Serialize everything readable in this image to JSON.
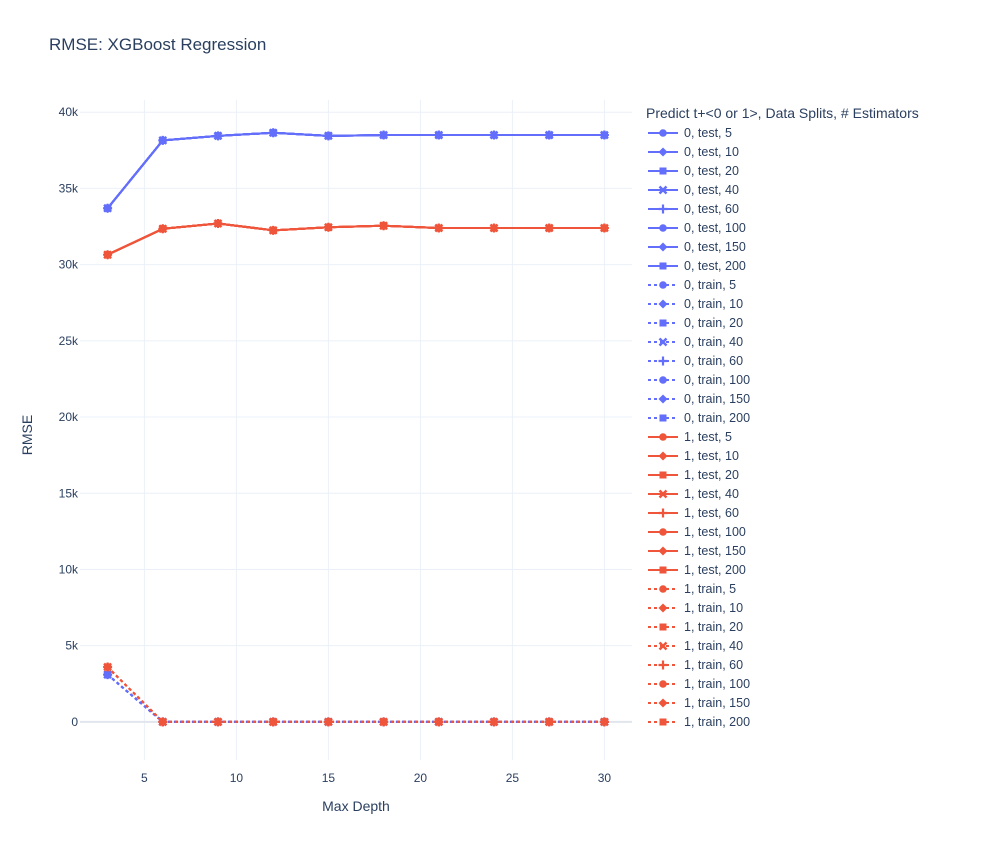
{
  "chart_data": {
    "type": "line",
    "title": "RMSE: XGBoost Regression",
    "xlabel": "Max Depth",
    "ylabel": "RMSE",
    "xlim": [
      1.5,
      31.5
    ],
    "ylim": [
      -2500,
      40800
    ],
    "grid": true,
    "x_ticks": [
      5,
      10,
      15,
      20,
      25,
      30
    ],
    "x_tick_labels": [
      "5",
      "10",
      "15",
      "20",
      "25",
      "30"
    ],
    "y_ticks": [
      0,
      5000,
      10000,
      15000,
      20000,
      25000,
      30000,
      35000,
      40000
    ],
    "y_tick_labels": [
      "0",
      "5k",
      "10k",
      "15k",
      "20k",
      "25k",
      "30k",
      "35k",
      "40k"
    ],
    "legend": {
      "title": "Predict t+<0 or 1>, Data Splits, # Estimators",
      "placement": "right"
    },
    "colors": {
      "0": "#636efa",
      "1": "#EF553B"
    },
    "x": [
      3,
      6,
      9,
      12,
      15,
      18,
      21,
      24,
      27,
      30
    ],
    "series": [
      {
        "name": "0, test, 5",
        "group": "0",
        "dash": "solid",
        "symbol": "circle",
        "values": [
          33700,
          38150,
          38450,
          38650,
          38450,
          38500,
          38500,
          38500,
          38500,
          38500
        ]
      },
      {
        "name": "0, test, 10",
        "group": "0",
        "dash": "solid",
        "symbol": "diamond",
        "values": [
          33700,
          38150,
          38450,
          38650,
          38450,
          38500,
          38500,
          38500,
          38500,
          38500
        ]
      },
      {
        "name": "0, test, 20",
        "group": "0",
        "dash": "solid",
        "symbol": "square",
        "values": [
          33700,
          38150,
          38450,
          38650,
          38450,
          38500,
          38500,
          38500,
          38500,
          38500
        ]
      },
      {
        "name": "0, test, 40",
        "group": "0",
        "dash": "solid",
        "symbol": "x",
        "values": [
          33700,
          38150,
          38450,
          38650,
          38450,
          38500,
          38500,
          38500,
          38500,
          38500
        ]
      },
      {
        "name": "0, test, 60",
        "group": "0",
        "dash": "solid",
        "symbol": "cross",
        "values": [
          33700,
          38150,
          38450,
          38650,
          38450,
          38500,
          38500,
          38500,
          38500,
          38500
        ]
      },
      {
        "name": "0, test, 100",
        "group": "0",
        "dash": "solid",
        "symbol": "circle",
        "values": [
          33700,
          38150,
          38450,
          38650,
          38450,
          38500,
          38500,
          38500,
          38500,
          38500
        ]
      },
      {
        "name": "0, test, 150",
        "group": "0",
        "dash": "solid",
        "symbol": "diamond",
        "values": [
          33700,
          38150,
          38450,
          38650,
          38450,
          38500,
          38500,
          38500,
          38500,
          38500
        ]
      },
      {
        "name": "0, test, 200",
        "group": "0",
        "dash": "solid",
        "symbol": "square",
        "values": [
          33700,
          38150,
          38450,
          38650,
          38450,
          38500,
          38500,
          38500,
          38500,
          38500
        ]
      },
      {
        "name": "0, train, 5",
        "group": "0",
        "dash": "dot",
        "symbol": "circle",
        "values": [
          3100,
          0,
          0,
          0,
          0,
          0,
          0,
          0,
          0,
          0
        ]
      },
      {
        "name": "0, train, 10",
        "group": "0",
        "dash": "dot",
        "symbol": "diamond",
        "values": [
          3100,
          0,
          0,
          0,
          0,
          0,
          0,
          0,
          0,
          0
        ]
      },
      {
        "name": "0, train, 20",
        "group": "0",
        "dash": "dot",
        "symbol": "square",
        "values": [
          3100,
          0,
          0,
          0,
          0,
          0,
          0,
          0,
          0,
          0
        ]
      },
      {
        "name": "0, train, 40",
        "group": "0",
        "dash": "dot",
        "symbol": "x",
        "values": [
          3100,
          0,
          0,
          0,
          0,
          0,
          0,
          0,
          0,
          0
        ]
      },
      {
        "name": "0, train, 60",
        "group": "0",
        "dash": "dot",
        "symbol": "cross",
        "values": [
          3100,
          0,
          0,
          0,
          0,
          0,
          0,
          0,
          0,
          0
        ]
      },
      {
        "name": "0, train, 100",
        "group": "0",
        "dash": "dot",
        "symbol": "circle",
        "values": [
          3100,
          0,
          0,
          0,
          0,
          0,
          0,
          0,
          0,
          0
        ]
      },
      {
        "name": "0, train, 150",
        "group": "0",
        "dash": "dot",
        "symbol": "diamond",
        "values": [
          3100,
          0,
          0,
          0,
          0,
          0,
          0,
          0,
          0,
          0
        ]
      },
      {
        "name": "0, train, 200",
        "group": "0",
        "dash": "dot",
        "symbol": "square",
        "values": [
          3100,
          0,
          0,
          0,
          0,
          0,
          0,
          0,
          0,
          0
        ]
      },
      {
        "name": "1, test, 5",
        "group": "1",
        "dash": "solid",
        "symbol": "circle",
        "values": [
          30650,
          32350,
          32700,
          32250,
          32450,
          32550,
          32400,
          32400,
          32400,
          32400
        ]
      },
      {
        "name": "1, test, 10",
        "group": "1",
        "dash": "solid",
        "symbol": "diamond",
        "values": [
          30650,
          32350,
          32700,
          32250,
          32450,
          32550,
          32400,
          32400,
          32400,
          32400
        ]
      },
      {
        "name": "1, test, 20",
        "group": "1",
        "dash": "solid",
        "symbol": "square",
        "values": [
          30650,
          32350,
          32700,
          32250,
          32450,
          32550,
          32400,
          32400,
          32400,
          32400
        ]
      },
      {
        "name": "1, test, 40",
        "group": "1",
        "dash": "solid",
        "symbol": "x",
        "values": [
          30650,
          32350,
          32700,
          32250,
          32450,
          32550,
          32400,
          32400,
          32400,
          32400
        ]
      },
      {
        "name": "1, test, 60",
        "group": "1",
        "dash": "solid",
        "symbol": "cross",
        "values": [
          30650,
          32350,
          32700,
          32250,
          32450,
          32550,
          32400,
          32400,
          32400,
          32400
        ]
      },
      {
        "name": "1, test, 100",
        "group": "1",
        "dash": "solid",
        "symbol": "circle",
        "values": [
          30650,
          32350,
          32700,
          32250,
          32450,
          32550,
          32400,
          32400,
          32400,
          32400
        ]
      },
      {
        "name": "1, test, 150",
        "group": "1",
        "dash": "solid",
        "symbol": "diamond",
        "values": [
          30650,
          32350,
          32700,
          32250,
          32450,
          32550,
          32400,
          32400,
          32400,
          32400
        ]
      },
      {
        "name": "1, test, 200",
        "group": "1",
        "dash": "solid",
        "symbol": "square",
        "values": [
          30650,
          32350,
          32700,
          32250,
          32450,
          32550,
          32400,
          32400,
          32400,
          32400
        ]
      },
      {
        "name": "1, train, 5",
        "group": "1",
        "dash": "dot",
        "symbol": "circle",
        "values": [
          3600,
          0,
          0,
          0,
          0,
          0,
          0,
          0,
          0,
          0
        ]
      },
      {
        "name": "1, train, 10",
        "group": "1",
        "dash": "dot",
        "symbol": "diamond",
        "values": [
          3600,
          0,
          0,
          0,
          0,
          0,
          0,
          0,
          0,
          0
        ]
      },
      {
        "name": "1, train, 20",
        "group": "1",
        "dash": "dot",
        "symbol": "square",
        "values": [
          3600,
          0,
          0,
          0,
          0,
          0,
          0,
          0,
          0,
          0
        ]
      },
      {
        "name": "1, train, 40",
        "group": "1",
        "dash": "dot",
        "symbol": "x",
        "values": [
          3600,
          0,
          0,
          0,
          0,
          0,
          0,
          0,
          0,
          0
        ]
      },
      {
        "name": "1, train, 60",
        "group": "1",
        "dash": "dot",
        "symbol": "cross",
        "values": [
          3600,
          0,
          0,
          0,
          0,
          0,
          0,
          0,
          0,
          0
        ]
      },
      {
        "name": "1, train, 100",
        "group": "1",
        "dash": "dot",
        "symbol": "circle",
        "values": [
          3600,
          0,
          0,
          0,
          0,
          0,
          0,
          0,
          0,
          0
        ]
      },
      {
        "name": "1, train, 150",
        "group": "1",
        "dash": "dot",
        "symbol": "diamond",
        "values": [
          3600,
          0,
          0,
          0,
          0,
          0,
          0,
          0,
          0,
          0
        ]
      },
      {
        "name": "1, train, 200",
        "group": "1",
        "dash": "dot",
        "symbol": "square",
        "values": [
          3600,
          0,
          0,
          0,
          0,
          0,
          0,
          0,
          0,
          0
        ]
      }
    ]
  }
}
